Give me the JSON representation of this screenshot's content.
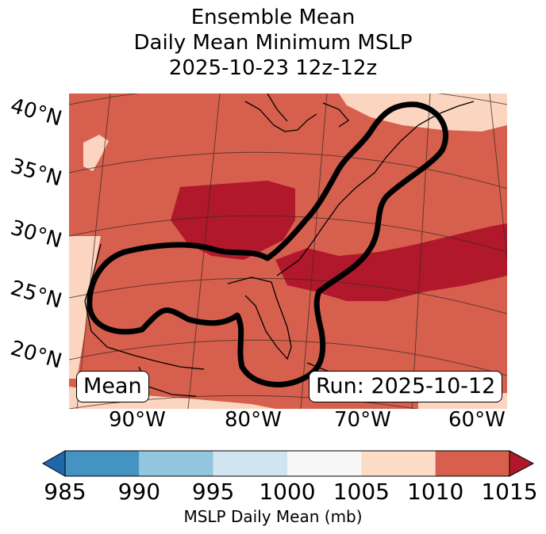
{
  "title": {
    "line1": "Ensemble Mean",
    "line2": "Daily Mean Minimum MSLP",
    "line3": "2025-10-23 12z-12z"
  },
  "map": {
    "lat_labels": [
      "40°N",
      "35°N",
      "30°N",
      "25°N",
      "20°N"
    ],
    "lon_labels": [
      "90°W",
      "80°W",
      "70°W",
      "60°W"
    ],
    "mean_label": "Mean",
    "run_label": "Run: 2025-10-12",
    "region_colors": {
      "high_1005_1010": "#fbd5c0",
      "mid_1010_1015": "#d6604d",
      "low_above_1015": "#b2182b"
    }
  },
  "colorbar": {
    "ticks": [
      "985",
      "990",
      "995",
      "1000",
      "1005",
      "1010",
      "1015"
    ],
    "colors": [
      "#4393c3",
      "#92c5de",
      "#d1e5f0",
      "#f7f7f7",
      "#fddbc7",
      "#d6604d"
    ],
    "under_color": "#2166ac",
    "over_color": "#b2182b",
    "label": "MSLP Daily Mean (mb)"
  }
}
